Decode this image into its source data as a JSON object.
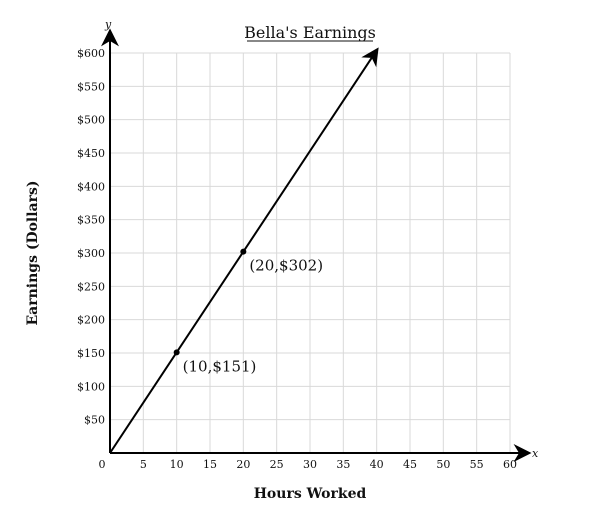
{
  "chart_data": {
    "type": "line",
    "title": "Bella's Earnings",
    "xlabel": "Hours Worked",
    "ylabel": "Earnings (Dollars)",
    "x_axis_letter": "x",
    "y_axis_letter": "y",
    "xlim": [
      0,
      60
    ],
    "ylim": [
      0,
      600
    ],
    "grid": true,
    "x_ticks": [
      0,
      5,
      10,
      15,
      20,
      25,
      30,
      35,
      40,
      45,
      50,
      55,
      60
    ],
    "x_tick_labels": [
      "0",
      "5",
      "10",
      "15",
      "20",
      "25",
      "30",
      "35",
      "40",
      "45",
      "50",
      "55",
      "60"
    ],
    "y_ticks": [
      50,
      100,
      150,
      200,
      250,
      300,
      350,
      400,
      450,
      500,
      550,
      600
    ],
    "y_tick_labels": [
      "$50",
      "$100",
      "$150",
      "$200",
      "$250",
      "$300",
      "$350",
      "$400",
      "$450",
      "$500",
      "$550",
      "$600"
    ],
    "series": [
      {
        "x": [
          0,
          40
        ],
        "y": [
          0,
          604
        ],
        "color": "#000000"
      }
    ],
    "points": [
      {
        "x": 10,
        "y": 151,
        "label": "(10,$151)"
      },
      {
        "x": 20,
        "y": 302,
        "label": "(20,$302)"
      }
    ]
  }
}
